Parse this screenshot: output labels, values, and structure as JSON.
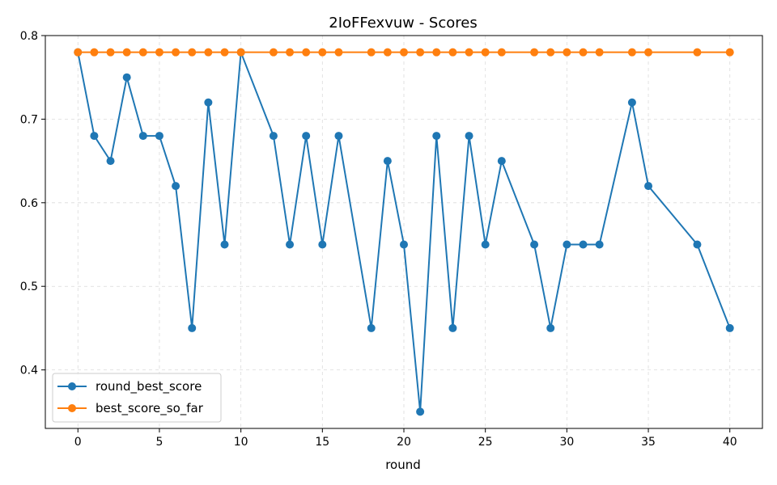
{
  "chart_data": {
    "type": "line",
    "title": "2IoFFexvuw - Scores",
    "xlabel": "round",
    "ylabel": "",
    "xlim": [
      -2,
      42
    ],
    "ylim": [
      0.33,
      0.8
    ],
    "x_ticks": [
      0,
      5,
      10,
      15,
      20,
      25,
      30,
      35,
      40
    ],
    "y_ticks": [
      0.4,
      0.5,
      0.6,
      0.7,
      0.8
    ],
    "grid": true,
    "legend_position": "lower-left",
    "series": [
      {
        "name": "round_best_score",
        "color": "#1f77b4",
        "points": [
          [
            0,
            0.78
          ],
          [
            1,
            0.68
          ],
          [
            2,
            0.65
          ],
          [
            3,
            0.75
          ],
          [
            4,
            0.68
          ],
          [
            5,
            0.68
          ],
          [
            6,
            0.62
          ],
          [
            7,
            0.45
          ],
          [
            8,
            0.72
          ],
          [
            9,
            0.55
          ],
          [
            10,
            0.78
          ],
          [
            12,
            0.68
          ],
          [
            13,
            0.55
          ],
          [
            14,
            0.68
          ],
          [
            15,
            0.55
          ],
          [
            16,
            0.68
          ],
          [
            18,
            0.45
          ],
          [
            19,
            0.65
          ],
          [
            20,
            0.55
          ],
          [
            21,
            0.35
          ],
          [
            22,
            0.68
          ],
          [
            23,
            0.45
          ],
          [
            24,
            0.68
          ],
          [
            25,
            0.55
          ],
          [
            26,
            0.65
          ],
          [
            28,
            0.55
          ],
          [
            29,
            0.45
          ],
          [
            30,
            0.55
          ],
          [
            31,
            0.55
          ],
          [
            32,
            0.55
          ],
          [
            34,
            0.72
          ],
          [
            35,
            0.62
          ],
          [
            38,
            0.55
          ],
          [
            40,
            0.45
          ]
        ]
      },
      {
        "name": "best_score_so_far",
        "color": "#ff7f0e",
        "points": [
          [
            0,
            0.78
          ],
          [
            1,
            0.78
          ],
          [
            2,
            0.78
          ],
          [
            3,
            0.78
          ],
          [
            4,
            0.78
          ],
          [
            5,
            0.78
          ],
          [
            6,
            0.78
          ],
          [
            7,
            0.78
          ],
          [
            8,
            0.78
          ],
          [
            9,
            0.78
          ],
          [
            10,
            0.78
          ],
          [
            12,
            0.78
          ],
          [
            13,
            0.78
          ],
          [
            14,
            0.78
          ],
          [
            15,
            0.78
          ],
          [
            16,
            0.78
          ],
          [
            18,
            0.78
          ],
          [
            19,
            0.78
          ],
          [
            20,
            0.78
          ],
          [
            21,
            0.78
          ],
          [
            22,
            0.78
          ],
          [
            23,
            0.78
          ],
          [
            24,
            0.78
          ],
          [
            25,
            0.78
          ],
          [
            26,
            0.78
          ],
          [
            28,
            0.78
          ],
          [
            29,
            0.78
          ],
          [
            30,
            0.78
          ],
          [
            31,
            0.78
          ],
          [
            32,
            0.78
          ],
          [
            34,
            0.78
          ],
          [
            35,
            0.78
          ],
          [
            38,
            0.78
          ],
          [
            40,
            0.78
          ]
        ]
      }
    ]
  }
}
